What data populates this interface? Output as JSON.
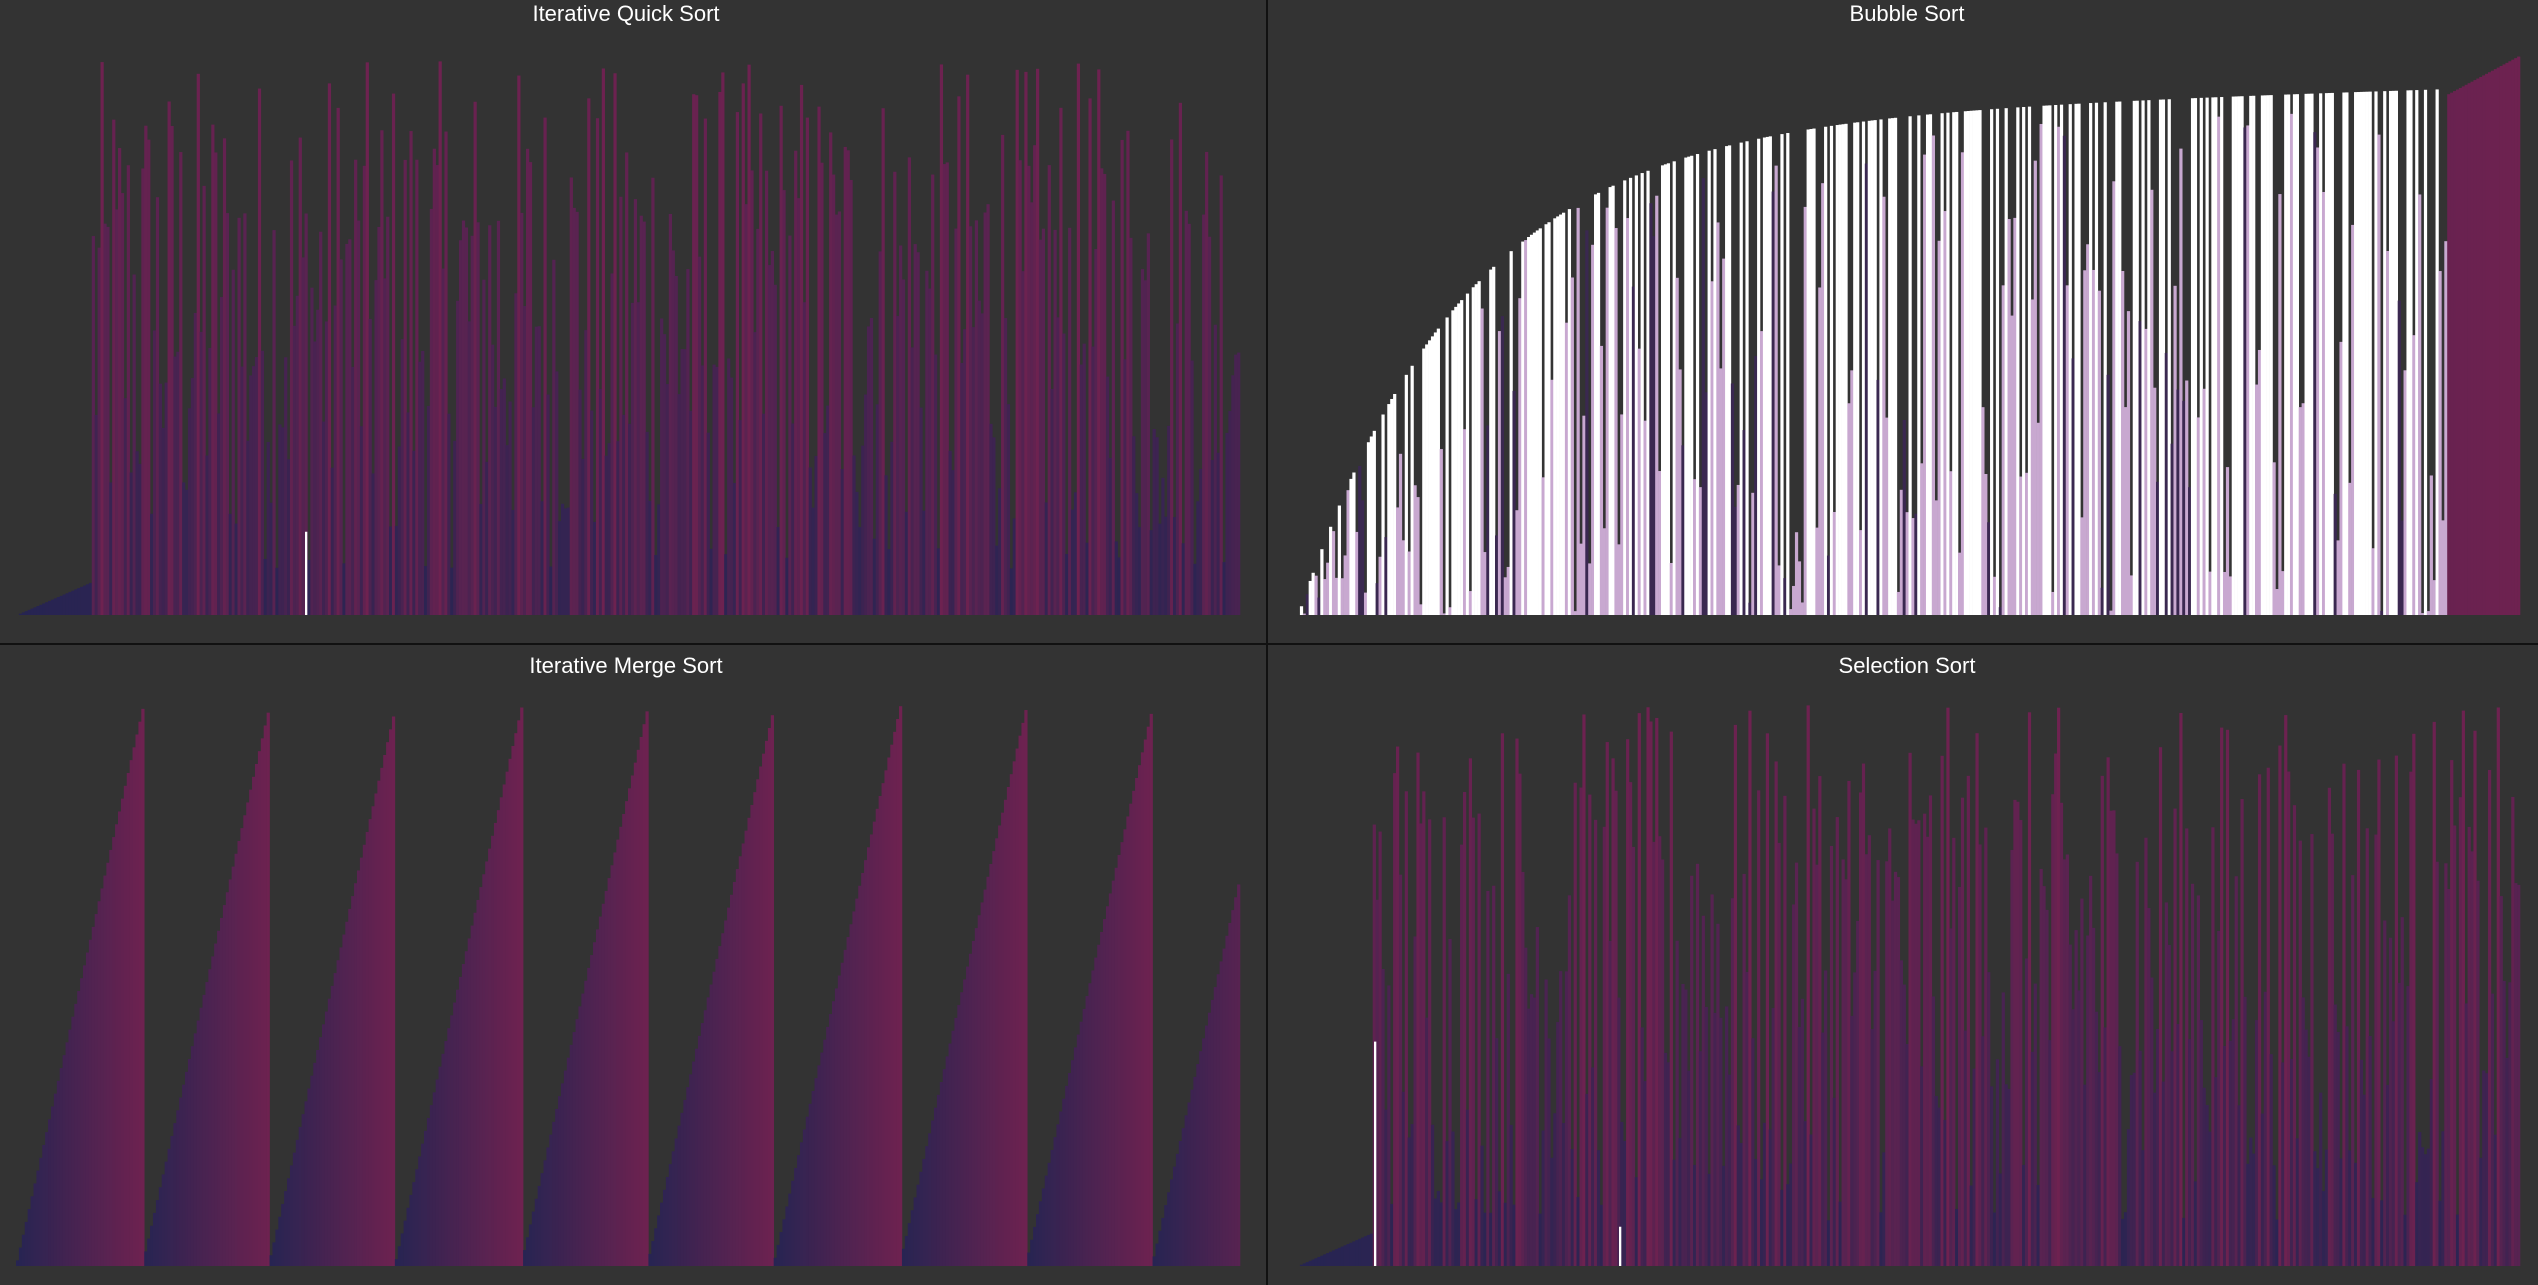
{
  "panels": [
    {
      "title": "Iterative Quick Sort"
    },
    {
      "title": "Bubble Sort"
    },
    {
      "title": "Iterative Merge Sort"
    },
    {
      "title": "Selection Sort"
    }
  ]
}
